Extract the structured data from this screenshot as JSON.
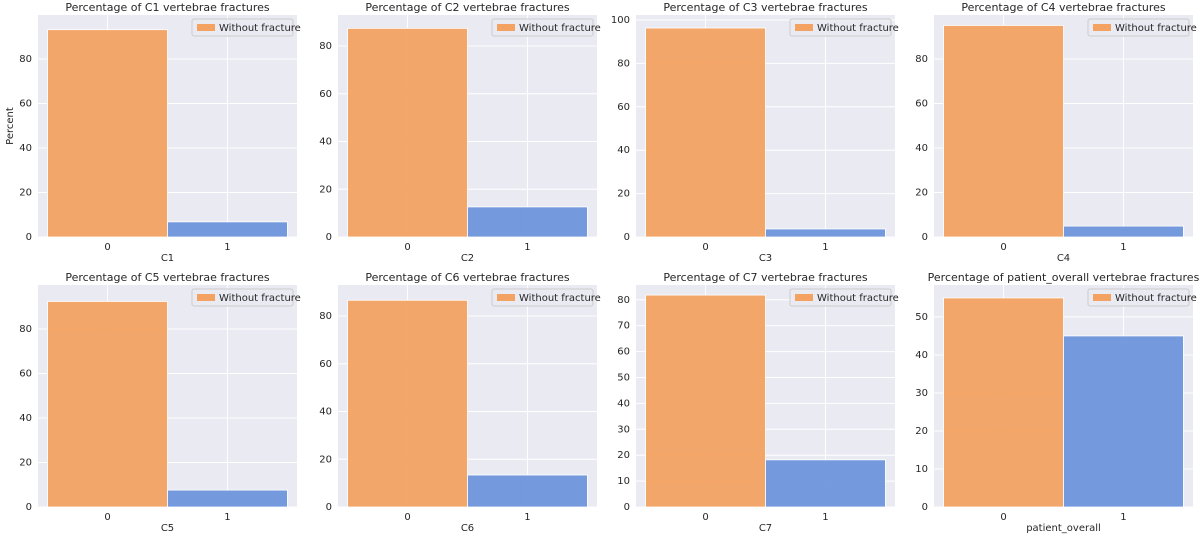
{
  "chart_data": [
    {
      "type": "bar",
      "title": "Percentage of C1 vertebrae fractures",
      "xlabel": "C1",
      "ylabel": "Percent",
      "categories": [
        "0",
        "1"
      ],
      "values": [
        93.2,
        6.8
      ],
      "colors": [
        "#f3a261",
        "#6e96db"
      ],
      "ylim": [
        0,
        99.8
      ],
      "yticks": [
        0,
        20,
        40,
        60,
        80
      ],
      "grid": true,
      "legend": {
        "label": "Without fracture",
        "color": "#f3a261",
        "loc": "upper right"
      }
    },
    {
      "type": "bar",
      "title": "Percentage of C2 vertebrae fractures",
      "xlabel": "C2",
      "categories": [
        "0",
        "1"
      ],
      "values": [
        87.4,
        12.6
      ],
      "colors": [
        "#f3a261",
        "#6e96db"
      ],
      "ylim": [
        0,
        93
      ],
      "yticks": [
        0,
        20,
        40,
        60,
        80
      ],
      "grid": true,
      "legend": {
        "label": "Without fracture",
        "color": "#f3a261",
        "loc": "upper right"
      }
    },
    {
      "type": "bar",
      "title": "Percentage of C3 vertebrae fractures",
      "xlabel": "C3",
      "categories": [
        "0",
        "1"
      ],
      "values": [
        96.3,
        3.7
      ],
      "colors": [
        "#f3a261",
        "#6e96db"
      ],
      "ylim": [
        0,
        102.3
      ],
      "yticks": [
        0,
        20,
        40,
        60,
        80,
        100
      ],
      "grid": true,
      "legend": {
        "label": "Without fracture",
        "color": "#f3a261",
        "loc": "upper right"
      }
    },
    {
      "type": "bar",
      "title": "Percentage of C4 vertebrae fractures",
      "xlabel": "C4",
      "categories": [
        "0",
        "1"
      ],
      "values": [
        95.1,
        4.9
      ],
      "colors": [
        "#f3a261",
        "#6e96db"
      ],
      "ylim": [
        0,
        99.8
      ],
      "yticks": [
        0,
        20,
        40,
        60,
        80
      ],
      "grid": true,
      "legend": {
        "label": "Without fracture",
        "color": "#f3a261",
        "loc": "upper right"
      }
    },
    {
      "type": "bar",
      "title": "Percentage of C5 vertebrae fractures",
      "xlabel": "C5",
      "categories": [
        "0",
        "1"
      ],
      "values": [
        92.4,
        7.6
      ],
      "colors": [
        "#f3a261",
        "#6e96db"
      ],
      "ylim": [
        0,
        99.8
      ],
      "yticks": [
        0,
        20,
        40,
        60,
        80
      ],
      "grid": true,
      "legend": {
        "label": "Without fracture",
        "color": "#f3a261",
        "loc": "upper right"
      }
    },
    {
      "type": "bar",
      "title": "Percentage of C6 vertebrae fractures",
      "xlabel": "C6",
      "categories": [
        "0",
        "1"
      ],
      "values": [
        86.6,
        13.4
      ],
      "colors": [
        "#f3a261",
        "#6e96db"
      ],
      "ylim": [
        0,
        93
      ],
      "yticks": [
        0,
        20,
        40,
        60,
        80
      ],
      "grid": true,
      "legend": {
        "label": "Without fracture",
        "color": "#f3a261",
        "loc": "upper right"
      }
    },
    {
      "type": "bar",
      "title": "Percentage of C7 vertebrae fractures",
      "xlabel": "C7",
      "categories": [
        "0",
        "1"
      ],
      "values": [
        81.8,
        18.2
      ],
      "colors": [
        "#f3a261",
        "#6e96db"
      ],
      "ylim": [
        0,
        85.7
      ],
      "yticks": [
        0,
        10,
        20,
        30,
        40,
        50,
        60,
        70,
        80
      ],
      "grid": true,
      "legend": {
        "label": "Without fracture",
        "color": "#f3a261",
        "loc": "upper right"
      }
    },
    {
      "type": "bar",
      "title": "Percentage of patient_overall vertebrae fractures",
      "xlabel": "patient_overall",
      "categories": [
        "0",
        "1"
      ],
      "values": [
        55,
        45
      ],
      "colors": [
        "#f3a261",
        "#6e96db"
      ],
      "ylim": [
        0,
        58.4
      ],
      "yticks": [
        0,
        10,
        20,
        30,
        40,
        50
      ],
      "grid": true,
      "legend": {
        "label": "Without fracture",
        "color": "#f3a261",
        "loc": "upper right"
      }
    }
  ]
}
